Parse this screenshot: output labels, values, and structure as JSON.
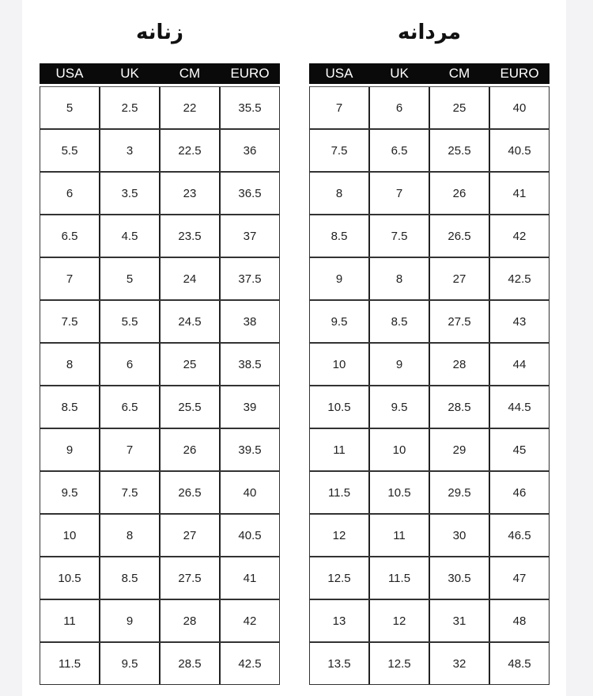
{
  "columns": [
    "USA",
    "UK",
    "CM",
    "EURO"
  ],
  "women": {
    "title": "زنانه",
    "rows": [
      [
        "5",
        "2.5",
        "22",
        "35.5"
      ],
      [
        "5.5",
        "3",
        "22.5",
        "36"
      ],
      [
        "6",
        "3.5",
        "23",
        "36.5"
      ],
      [
        "6.5",
        "4.5",
        "23.5",
        "37"
      ],
      [
        "7",
        "5",
        "24",
        "37.5"
      ],
      [
        "7.5",
        "5.5",
        "24.5",
        "38"
      ],
      [
        "8",
        "6",
        "25",
        "38.5"
      ],
      [
        "8.5",
        "6.5",
        "25.5",
        "39"
      ],
      [
        "9",
        "7",
        "26",
        "39.5"
      ],
      [
        "9.5",
        "7.5",
        "26.5",
        "40"
      ],
      [
        "10",
        "8",
        "27",
        "40.5"
      ],
      [
        "10.5",
        "8.5",
        "27.5",
        "41"
      ],
      [
        "11",
        "9",
        "28",
        "42"
      ],
      [
        "11.5",
        "9.5",
        "28.5",
        "42.5"
      ]
    ]
  },
  "men": {
    "title": "مردانه",
    "rows": [
      [
        "7",
        "6",
        "25",
        "40"
      ],
      [
        "7.5",
        "6.5",
        "25.5",
        "40.5"
      ],
      [
        "8",
        "7",
        "26",
        "41"
      ],
      [
        "8.5",
        "7.5",
        "26.5",
        "42"
      ],
      [
        "9",
        "8",
        "27",
        "42.5"
      ],
      [
        "9.5",
        "8.5",
        "27.5",
        "43"
      ],
      [
        "10",
        "9",
        "28",
        "44"
      ],
      [
        "10.5",
        "9.5",
        "28.5",
        "44.5"
      ],
      [
        "11",
        "10",
        "29",
        "45"
      ],
      [
        "11.5",
        "10.5",
        "29.5",
        "46"
      ],
      [
        "12",
        "11",
        "30",
        "46.5"
      ],
      [
        "12.5",
        "11.5",
        "30.5",
        "47"
      ],
      [
        "13",
        "12",
        "31",
        "48"
      ],
      [
        "13.5",
        "12.5",
        "32",
        "48.5"
      ]
    ]
  }
}
